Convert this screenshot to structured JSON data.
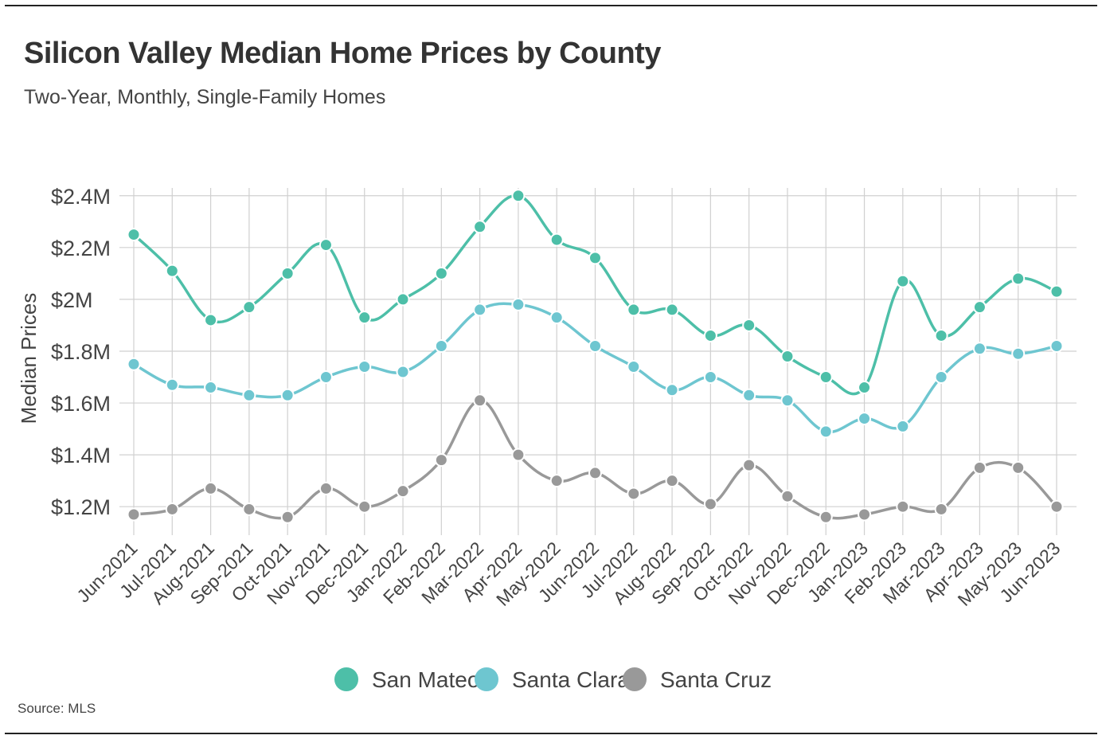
{
  "title": "Silicon Valley Median Home Prices by County",
  "subtitle": "Two-Year, Monthly, Single-Family Homes",
  "source": "Source: MLS",
  "chart_data": {
    "type": "line",
    "title": "Silicon Valley Median Home Prices by County",
    "subtitle": "Two-Year, Monthly, Single-Family Homes",
    "xlabel": "",
    "ylabel": "Median Prices",
    "ylim": [
      1.09,
      2.43
    ],
    "yticks": [
      1.2,
      1.4,
      1.6,
      1.8,
      2.0,
      2.2,
      2.4
    ],
    "ytick_labels": [
      "$1.2M",
      "$1.4M",
      "$1.6M",
      "$1.8M",
      "$2M",
      "$2.2M",
      "$2.4M"
    ],
    "grid": true,
    "legend_position": "bottom-center",
    "categories": [
      "Jun-2021",
      "Jul-2021",
      "Aug-2021",
      "Sep-2021",
      "Oct-2021",
      "Nov-2021",
      "Dec-2021",
      "Jan-2022",
      "Feb-2022",
      "Mar-2022",
      "Apr-2022",
      "May-2022",
      "Jun-2022",
      "Jul-2022",
      "Aug-2022",
      "Sep-2022",
      "Oct-2022",
      "Nov-2022",
      "Dec-2022",
      "Jan-2023",
      "Feb-2023",
      "Mar-2023",
      "Apr-2023",
      "May-2023",
      "Jun-2023"
    ],
    "series": [
      {
        "name": "San Mateo",
        "color": "#4dbfa8",
        "values": [
          2.25,
          2.11,
          1.92,
          1.97,
          2.1,
          2.21,
          1.93,
          2.0,
          2.1,
          2.28,
          2.4,
          2.23,
          2.16,
          1.96,
          1.96,
          1.86,
          1.9,
          1.78,
          1.7,
          1.66,
          2.07,
          1.86,
          1.97,
          2.08,
          2.03
        ]
      },
      {
        "name": "Santa Clara",
        "color": "#6ec6d0",
        "values": [
          1.75,
          1.67,
          1.66,
          1.63,
          1.63,
          1.7,
          1.74,
          1.72,
          1.82,
          1.96,
          1.98,
          1.93,
          1.82,
          1.74,
          1.65,
          1.7,
          1.63,
          1.61,
          1.49,
          1.54,
          1.51,
          1.7,
          1.81,
          1.79,
          1.82
        ]
      },
      {
        "name": "Santa Cruz",
        "color": "#999999",
        "values": [
          1.17,
          1.19,
          1.27,
          1.19,
          1.16,
          1.27,
          1.2,
          1.26,
          1.38,
          1.61,
          1.4,
          1.3,
          1.33,
          1.25,
          1.3,
          1.21,
          1.36,
          1.24,
          1.16,
          1.17,
          1.2,
          1.19,
          1.35,
          1.35,
          1.2
        ]
      }
    ]
  }
}
